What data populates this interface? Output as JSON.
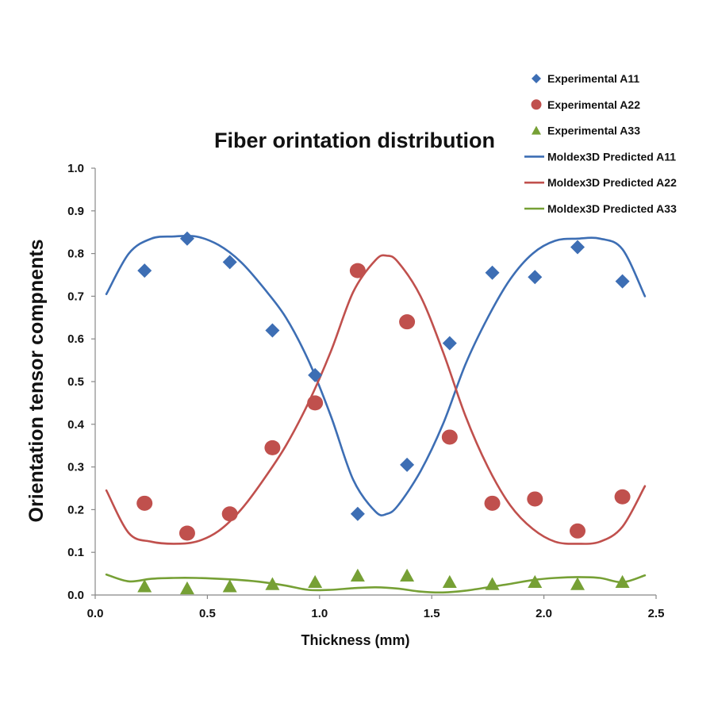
{
  "chart_data": {
    "type": "scatter+line",
    "title": "Fiber orintation distribution",
    "xlabel": "Thickness (mm)",
    "ylabel": "Orientation tensor compnents",
    "xlim": [
      0.0,
      2.5
    ],
    "ylim": [
      0.0,
      1.0
    ],
    "xticks": [
      "0.0",
      "0.5",
      "1.0",
      "1.5",
      "2.0",
      "2.5"
    ],
    "yticks": [
      "0.0",
      "0.1",
      "0.2",
      "0.3",
      "0.4",
      "0.5",
      "0.6",
      "0.7",
      "0.8",
      "0.9",
      "1.0"
    ],
    "legend_position": "top-right",
    "grid": false,
    "series": [
      {
        "name": "Experimental A11",
        "kind": "scatter",
        "marker": "diamond",
        "color": "#3d6eb4",
        "x": [
          0.22,
          0.41,
          0.6,
          0.79,
          0.98,
          1.17,
          1.39,
          1.58,
          1.77,
          1.96,
          2.15,
          2.35
        ],
        "y": [
          0.76,
          0.835,
          0.78,
          0.62,
          0.515,
          0.19,
          0.305,
          0.59,
          0.755,
          0.745,
          0.815,
          0.735
        ]
      },
      {
        "name": "Experimental A22",
        "kind": "scatter",
        "marker": "circle",
        "color": "#c0504d",
        "x": [
          0.22,
          0.41,
          0.6,
          0.79,
          0.98,
          1.17,
          1.39,
          1.58,
          1.77,
          1.96,
          2.15,
          2.35
        ],
        "y": [
          0.215,
          0.145,
          0.19,
          0.345,
          0.45,
          0.76,
          0.64,
          0.37,
          0.215,
          0.225,
          0.15,
          0.23
        ]
      },
      {
        "name": "Experimental A33",
        "kind": "scatter",
        "marker": "triangle",
        "color": "#76a035",
        "x": [
          0.22,
          0.41,
          0.6,
          0.79,
          0.98,
          1.17,
          1.39,
          1.58,
          1.77,
          1.96,
          2.15,
          2.35
        ],
        "y": [
          0.02,
          0.015,
          0.02,
          0.025,
          0.03,
          0.045,
          0.045,
          0.03,
          0.025,
          0.03,
          0.025,
          0.03
        ]
      },
      {
        "name": "Moldex3D Predicted A11",
        "kind": "line",
        "color": "#3d6eb4",
        "x": [
          0.05,
          0.15,
          0.25,
          0.35,
          0.45,
          0.55,
          0.65,
          0.75,
          0.85,
          0.95,
          1.05,
          1.15,
          1.25,
          1.3,
          1.35,
          1.45,
          1.55,
          1.65,
          1.75,
          1.85,
          1.95,
          2.05,
          2.15,
          2.25,
          2.35,
          2.45
        ],
        "y": [
          0.705,
          0.8,
          0.835,
          0.84,
          0.84,
          0.82,
          0.78,
          0.72,
          0.65,
          0.55,
          0.42,
          0.27,
          0.195,
          0.19,
          0.21,
          0.29,
          0.4,
          0.54,
          0.65,
          0.74,
          0.8,
          0.83,
          0.835,
          0.835,
          0.81,
          0.7
        ]
      },
      {
        "name": "Moldex3D Predicted A22",
        "kind": "line",
        "color": "#c0504d",
        "x": [
          0.05,
          0.15,
          0.25,
          0.35,
          0.45,
          0.55,
          0.65,
          0.75,
          0.85,
          0.95,
          1.05,
          1.15,
          1.25,
          1.3,
          1.35,
          1.45,
          1.55,
          1.65,
          1.75,
          1.85,
          1.95,
          2.05,
          2.15,
          2.25,
          2.35,
          2.45
        ],
        "y": [
          0.245,
          0.145,
          0.125,
          0.12,
          0.125,
          0.15,
          0.2,
          0.27,
          0.35,
          0.45,
          0.57,
          0.71,
          0.785,
          0.795,
          0.78,
          0.7,
          0.57,
          0.42,
          0.3,
          0.21,
          0.155,
          0.125,
          0.12,
          0.125,
          0.16,
          0.255
        ]
      },
      {
        "name": "Moldex3D Predicted A33",
        "kind": "line",
        "color": "#76a035",
        "x": [
          0.05,
          0.15,
          0.25,
          0.35,
          0.45,
          0.55,
          0.65,
          0.75,
          0.85,
          0.95,
          1.05,
          1.15,
          1.25,
          1.35,
          1.45,
          1.55,
          1.65,
          1.75,
          1.85,
          1.95,
          2.05,
          2.15,
          2.25,
          2.35,
          2.45
        ],
        "y": [
          0.048,
          0.032,
          0.038,
          0.04,
          0.04,
          0.038,
          0.035,
          0.03,
          0.022,
          0.012,
          0.012,
          0.016,
          0.018,
          0.015,
          0.008,
          0.006,
          0.01,
          0.018,
          0.026,
          0.035,
          0.04,
          0.042,
          0.04,
          0.03,
          0.046
        ]
      }
    ]
  }
}
